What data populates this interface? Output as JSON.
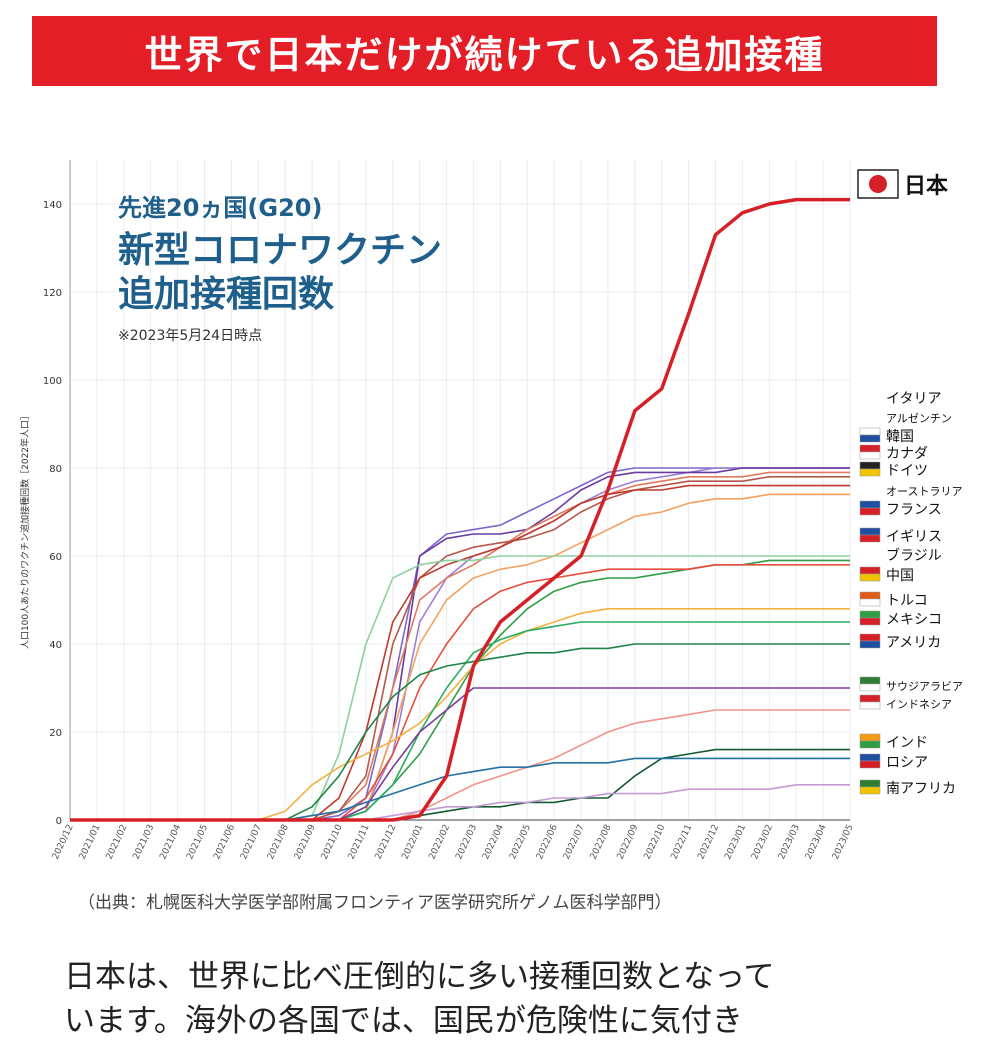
{
  "banner": {
    "title": "世界で日本だけが続けている追加接種"
  },
  "chart_title": {
    "line1": "先進20ヵ国(G20)",
    "line2": "新型コロナワクチン",
    "line3": "追加接種回数",
    "note": "※2023年5月24日時点"
  },
  "source": "（出典：札幌医科大学医学部附属フロンティア医学研究所ゲノム医科学部門）",
  "body_text": {
    "line1": "日本は、世界に比べ圧倒的に多い接種回数となって",
    "line2": "います。海外の各国では、国民が危険性に気付き"
  },
  "chart_data": {
    "type": "line",
    "ylabel": "人口100人あたりのワクチン追加接種回数［2022年人口］",
    "ylim": [
      0,
      150
    ],
    "yticks": [
      0,
      20,
      40,
      60,
      80,
      100,
      120,
      140
    ],
    "categories": [
      "2020/12",
      "2021/01",
      "2021/02",
      "2021/03",
      "2021/04",
      "2021/05",
      "2021/06",
      "2021/07",
      "2021/08",
      "2021/09",
      "2021/10",
      "2021/11",
      "2021/12",
      "2022/01",
      "2022/02",
      "2022/03",
      "2022/04",
      "2022/05",
      "2022/06",
      "2022/07",
      "2022/08",
      "2022/09",
      "2022/10",
      "2022/11",
      "2022/12",
      "2023/01",
      "2023/02",
      "2023/03",
      "2023/04",
      "2023/05"
    ],
    "series": [
      {
        "name": "日本",
        "color": "#d62027",
        "values": [
          0,
          0,
          0,
          0,
          0,
          0,
          0,
          0,
          0,
          0,
          0,
          0,
          0,
          1,
          10,
          35,
          45,
          50,
          55,
          60,
          75,
          93,
          98,
          115,
          133,
          138,
          140,
          141,
          141,
          141
        ]
      },
      {
        "name": "イタリア",
        "color": "#7b68c8",
        "values": [
          0,
          0,
          0,
          0,
          0,
          0,
          0,
          0,
          0,
          0,
          1,
          5,
          30,
          60,
          65,
          66,
          67,
          70,
          73,
          76,
          79,
          80,
          80,
          80,
          80,
          80,
          80,
          80,
          80,
          80
        ]
      },
      {
        "name": "アルゼンチン",
        "color": "#9b7fd4",
        "values": [
          0,
          0,
          0,
          0,
          0,
          0,
          0,
          0,
          0,
          0,
          0,
          3,
          15,
          45,
          55,
          60,
          62,
          65,
          68,
          72,
          75,
          77,
          78,
          79,
          80,
          80,
          80,
          80,
          80,
          80
        ]
      },
      {
        "name": "韓国",
        "color": "#6a3aa0",
        "values": [
          0,
          0,
          0,
          0,
          0,
          0,
          0,
          0,
          0,
          0,
          0,
          2,
          20,
          60,
          64,
          65,
          65,
          66,
          70,
          75,
          78,
          79,
          79,
          79,
          79,
          80,
          80,
          80,
          80,
          80
        ]
      },
      {
        "name": "カナダ",
        "color": "#e07a5f",
        "values": [
          0,
          0,
          0,
          0,
          0,
          0,
          0,
          0,
          0,
          0,
          2,
          8,
          30,
          50,
          55,
          58,
          62,
          66,
          69,
          72,
          74,
          76,
          77,
          78,
          78,
          78,
          79,
          79,
          79,
          79
        ]
      },
      {
        "name": "ドイツ",
        "color": "#b5574b",
        "values": [
          0,
          0,
          0,
          0,
          0,
          0,
          0,
          0,
          0,
          0,
          2,
          10,
          40,
          55,
          60,
          62,
          63,
          64,
          66,
          70,
          73,
          75,
          76,
          77,
          77,
          77,
          78,
          78,
          78,
          78
        ]
      },
      {
        "name": "オーストラリア",
        "color": "#f4a261",
        "values": [
          0,
          0,
          0,
          0,
          0,
          0,
          0,
          0,
          0,
          0,
          0,
          2,
          20,
          40,
          50,
          55,
          57,
          58,
          60,
          63,
          66,
          69,
          70,
          72,
          73,
          73,
          74,
          74,
          74,
          74
        ]
      },
      {
        "name": "フランス",
        "color": "#c0392b",
        "values": [
          0,
          0,
          0,
          0,
          0,
          0,
          0,
          0,
          0,
          0,
          5,
          20,
          45,
          55,
          58,
          60,
          62,
          65,
          68,
          72,
          74,
          75,
          75,
          76,
          76,
          76,
          76,
          76,
          76,
          76
        ]
      },
      {
        "name": "イギリス",
        "color": "#8fd19e",
        "values": [
          0,
          0,
          0,
          0,
          0,
          0,
          0,
          0,
          0,
          1,
          15,
          40,
          55,
          58,
          59,
          59,
          60,
          60,
          60,
          60,
          60,
          60,
          60,
          60,
          60,
          60,
          60,
          60,
          60,
          60
        ]
      },
      {
        "name": "ブラジル",
        "color": "#2e9e44",
        "values": [
          0,
          0,
          0,
          0,
          0,
          0,
          0,
          0,
          0,
          0,
          0,
          2,
          8,
          15,
          25,
          35,
          42,
          48,
          52,
          54,
          55,
          55,
          56,
          57,
          58,
          58,
          59,
          59,
          59,
          59
        ]
      },
      {
        "name": "中国",
        "color": "#e74c3c",
        "values": [
          0,
          0,
          0,
          0,
          0,
          0,
          0,
          0,
          0,
          0,
          0,
          5,
          15,
          30,
          40,
          48,
          52,
          54,
          55,
          56,
          57,
          57,
          57,
          57,
          58,
          58,
          58,
          58,
          58,
          58
        ]
      },
      {
        "name": "トルコ",
        "color": "#f5b041",
        "values": [
          0,
          0,
          0,
          0,
          0,
          0,
          0,
          0,
          2,
          8,
          12,
          15,
          18,
          22,
          28,
          35,
          40,
          43,
          45,
          47,
          48,
          48,
          48,
          48,
          48,
          48,
          48,
          48,
          48,
          48
        ]
      },
      {
        "name": "メキシコ",
        "color": "#27ae60",
        "values": [
          0,
          0,
          0,
          0,
          0,
          0,
          0,
          0,
          0,
          0,
          0,
          2,
          8,
          20,
          30,
          38,
          41,
          43,
          44,
          45,
          45,
          45,
          45,
          45,
          45,
          45,
          45,
          45,
          45,
          45
        ]
      },
      {
        "name": "アメリカ",
        "color": "#1e8449",
        "values": [
          0,
          0,
          0,
          0,
          0,
          0,
          0,
          0,
          0,
          3,
          10,
          20,
          28,
          33,
          35,
          36,
          37,
          38,
          38,
          39,
          39,
          40,
          40,
          40,
          40,
          40,
          40,
          40,
          40,
          40
        ]
      },
      {
        "name": "サウジアラビア",
        "color": "#7d3c98",
        "values": [
          0,
          0,
          0,
          0,
          0,
          0,
          0,
          0,
          0,
          0,
          0,
          3,
          12,
          20,
          25,
          30,
          30,
          30,
          30,
          30,
          30,
          30,
          30,
          30,
          30,
          30,
          30,
          30,
          30,
          30
        ]
      },
      {
        "name": "インドネシア",
        "color": "#f1948a",
        "values": [
          0,
          0,
          0,
          0,
          0,
          0,
          0,
          0,
          0,
          0,
          0,
          0,
          0,
          2,
          5,
          8,
          10,
          12,
          14,
          17,
          20,
          22,
          23,
          24,
          25,
          25,
          25,
          25,
          25,
          25
        ]
      },
      {
        "name": "インド",
        "color": "#145a32",
        "values": [
          0,
          0,
          0,
          0,
          0,
          0,
          0,
          0,
          0,
          0,
          0,
          0,
          0,
          1,
          2,
          3,
          3,
          4,
          4,
          5,
          5,
          10,
          14,
          15,
          16,
          16,
          16,
          16,
          16,
          16
        ]
      },
      {
        "name": "ロシア",
        "color": "#2471a3",
        "values": [
          0,
          0,
          0,
          0,
          0,
          0,
          0,
          0,
          0,
          1,
          2,
          4,
          6,
          8,
          10,
          11,
          12,
          12,
          13,
          13,
          13,
          14,
          14,
          14,
          14,
          14,
          14,
          14,
          14,
          14
        ]
      },
      {
        "name": "南アフリカ",
        "color": "#c39bd3",
        "values": [
          0,
          0,
          0,
          0,
          0,
          0,
          0,
          0,
          0,
          0,
          0,
          0,
          1,
          2,
          3,
          3,
          4,
          4,
          5,
          5,
          6,
          6,
          6,
          7,
          7,
          7,
          7,
          8,
          8,
          8
        ]
      }
    ],
    "legend": [
      {
        "name": "日本",
        "flag": "jp"
      },
      {
        "name": "イタリア",
        "flag": ""
      },
      {
        "name": "アルゼンチン",
        "flag": ""
      },
      {
        "name": "韓国",
        "flag": "kr"
      },
      {
        "name": "カナダ",
        "flag": "ca"
      },
      {
        "name": "ドイツ",
        "flag": "de"
      },
      {
        "name": "オーストラリア",
        "flag": ""
      },
      {
        "name": "フランス",
        "flag": "fr"
      },
      {
        "name": "イギリス",
        "flag": "gb"
      },
      {
        "name": "ブラジル",
        "flag": ""
      },
      {
        "name": "中国",
        "flag": "cn"
      },
      {
        "name": "トルコ",
        "flag": "tr"
      },
      {
        "name": "メキシコ",
        "flag": "mx"
      },
      {
        "name": "アメリカ",
        "flag": "us"
      },
      {
        "name": "サウジアラビア",
        "flag": "sa"
      },
      {
        "name": "インドネシア",
        "flag": "id"
      },
      {
        "name": "インド",
        "flag": "in"
      },
      {
        "name": "ロシア",
        "flag": "ru"
      },
      {
        "name": "南アフリカ",
        "flag": "za"
      }
    ]
  }
}
